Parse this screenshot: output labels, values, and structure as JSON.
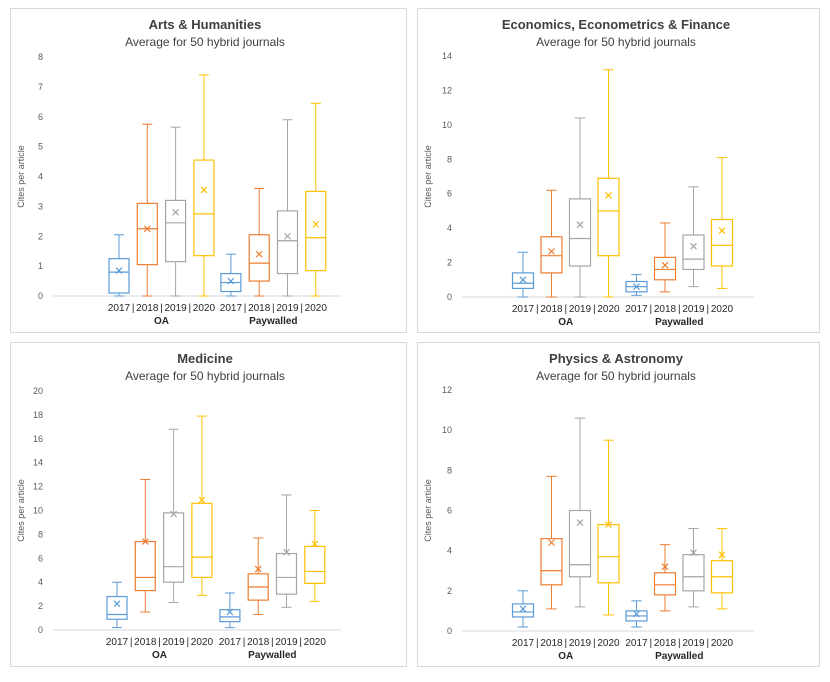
{
  "colors": {
    "2017": "#5b9bd5",
    "2018": "#ed7d31",
    "2019": "#a5a5a5",
    "2020": "#ffc000",
    "axis_text": "#595959",
    "grid": "#d9d9d9"
  },
  "chart_data": [
    {
      "type": "box",
      "title": "Arts & Humanities",
      "subtitle": "Average for 50 hybrid journals",
      "ylabel": "Cites per article",
      "ylim": [
        0,
        8
      ],
      "yticks": [
        "0",
        "1",
        "2",
        "3",
        "4",
        "5",
        "6",
        "7",
        "8"
      ],
      "year_labels": [
        "2017",
        "2018",
        "2019",
        "2020"
      ],
      "group_labels": [
        "OA",
        "Paywalled"
      ],
      "groups": [
        {
          "name": "OA",
          "boxes": [
            {
              "year": "2017",
              "min": 0,
              "q1": 0.1,
              "median": 0.8,
              "q3": 1.25,
              "max": 2.05,
              "mean": 0.85
            },
            {
              "year": "2018",
              "min": 0,
              "q1": 1.05,
              "median": 2.25,
              "q3": 3.1,
              "max": 5.75,
              "mean": 2.25
            },
            {
              "year": "2019",
              "min": 0,
              "q1": 1.15,
              "median": 2.45,
              "q3": 3.2,
              "max": 5.65,
              "mean": 2.8
            },
            {
              "year": "2020",
              "min": 0,
              "q1": 1.35,
              "median": 2.75,
              "q3": 4.55,
              "max": 7.4,
              "mean": 3.55
            }
          ]
        },
        {
          "name": "Paywalled",
          "boxes": [
            {
              "year": "2017",
              "min": 0,
              "q1": 0.15,
              "median": 0.45,
              "q3": 0.75,
              "max": 1.4,
              "mean": 0.5
            },
            {
              "year": "2018",
              "min": 0,
              "q1": 0.5,
              "median": 1.1,
              "q3": 2.05,
              "max": 3.6,
              "mean": 1.4
            },
            {
              "year": "2019",
              "min": 0,
              "q1": 0.75,
              "median": 1.85,
              "q3": 2.85,
              "max": 5.9,
              "mean": 2.0
            },
            {
              "year": "2020",
              "min": 0,
              "q1": 0.85,
              "median": 1.95,
              "q3": 3.5,
              "max": 6.45,
              "mean": 2.4
            }
          ]
        }
      ]
    },
    {
      "type": "box",
      "title": "Economics, Econometrics & Finance",
      "subtitle": "Average for 50 hybrid journals",
      "ylabel": "Cites per article",
      "ylim": [
        0,
        14
      ],
      "yticks": [
        "0",
        "2",
        "4",
        "6",
        "8",
        "10",
        "12",
        "14"
      ],
      "year_labels": [
        "2017",
        "2018",
        "2019",
        "2020"
      ],
      "group_labels": [
        "OA",
        "Paywalled"
      ],
      "groups": [
        {
          "name": "OA",
          "boxes": [
            {
              "year": "2017",
              "min": 0,
              "q1": 0.5,
              "median": 0.8,
              "q3": 1.4,
              "max": 2.6,
              "mean": 1.0
            },
            {
              "year": "2018",
              "min": 0,
              "q1": 1.4,
              "median": 2.4,
              "q3": 3.5,
              "max": 6.2,
              "mean": 2.65
            },
            {
              "year": "2019",
              "min": 0,
              "q1": 1.8,
              "median": 3.4,
              "q3": 5.7,
              "max": 10.4,
              "mean": 4.2
            },
            {
              "year": "2020",
              "min": 0,
              "q1": 2.4,
              "median": 5.0,
              "q3": 6.9,
              "max": 13.2,
              "mean": 5.9
            }
          ]
        },
        {
          "name": "Paywalled",
          "boxes": [
            {
              "year": "2017",
              "min": 0.1,
              "q1": 0.3,
              "median": 0.6,
              "q3": 0.9,
              "max": 1.3,
              "mean": 0.6
            },
            {
              "year": "2018",
              "min": 0.3,
              "q1": 1.0,
              "median": 1.6,
              "q3": 2.3,
              "max": 4.3,
              "mean": 1.85
            },
            {
              "year": "2019",
              "min": 0.6,
              "q1": 1.6,
              "median": 2.2,
              "q3": 3.6,
              "max": 6.4,
              "mean": 2.95
            },
            {
              "year": "2020",
              "min": 0.5,
              "q1": 1.8,
              "median": 3.0,
              "q3": 4.5,
              "max": 8.1,
              "mean": 3.85
            }
          ]
        }
      ]
    },
    {
      "type": "box",
      "title": "Medicine",
      "subtitle": "Average for 50 hybrid journals",
      "ylabel": "Cites per article",
      "ylim": [
        0,
        20
      ],
      "yticks": [
        "0",
        "2",
        "4",
        "6",
        "8",
        "10",
        "12",
        "14",
        "16",
        "18",
        "20"
      ],
      "year_labels": [
        "2017",
        "2018",
        "2019",
        "2020"
      ],
      "group_labels": [
        "OA",
        "Paywalled"
      ],
      "groups": [
        {
          "name": "OA",
          "boxes": [
            {
              "year": "2017",
              "min": 0.2,
              "q1": 0.9,
              "median": 1.3,
              "q3": 2.8,
              "max": 4.0,
              "mean": 2.2
            },
            {
              "year": "2018",
              "min": 1.5,
              "q1": 3.3,
              "median": 4.4,
              "q3": 7.4,
              "max": 12.6,
              "mean": 7.4
            },
            {
              "year": "2019",
              "min": 2.3,
              "q1": 4.0,
              "median": 5.3,
              "q3": 9.8,
              "max": 16.8,
              "mean": 9.7
            },
            {
              "year": "2020",
              "min": 2.9,
              "q1": 4.4,
              "median": 6.1,
              "q3": 10.6,
              "max": 17.9,
              "mean": 10.9
            }
          ]
        },
        {
          "name": "Paywalled",
          "boxes": [
            {
              "year": "2017",
              "min": 0.2,
              "q1": 0.7,
              "median": 1.1,
              "q3": 1.7,
              "max": 3.1,
              "mean": 1.5
            },
            {
              "year": "2018",
              "min": 1.3,
              "q1": 2.5,
              "median": 3.6,
              "q3": 4.7,
              "max": 7.7,
              "mean": 5.1
            },
            {
              "year": "2019",
              "min": 1.9,
              "q1": 3.0,
              "median": 4.4,
              "q3": 6.4,
              "max": 11.3,
              "mean": 6.5
            },
            {
              "year": "2020",
              "min": 2.4,
              "q1": 3.9,
              "median": 4.9,
              "q3": 7.0,
              "max": 10.0,
              "mean": 7.2
            }
          ]
        }
      ]
    },
    {
      "type": "box",
      "title": "Physics & Astronomy",
      "subtitle": "Average for 50 hybrid journals",
      "ylabel": "Cites per article",
      "ylim": [
        0,
        12
      ],
      "yticks": [
        "0",
        "2",
        "4",
        "6",
        "8",
        "10",
        "12"
      ],
      "year_labels": [
        "2017",
        "2018",
        "2019",
        "2020"
      ],
      "group_labels": [
        "OA",
        "Paywalled"
      ],
      "groups": [
        {
          "name": "OA",
          "boxes": [
            {
              "year": "2017",
              "min": 0.2,
              "q1": 0.7,
              "median": 0.95,
              "q3": 1.35,
              "max": 2.0,
              "mean": 1.1
            },
            {
              "year": "2018",
              "min": 1.1,
              "q1": 2.3,
              "median": 3.0,
              "q3": 4.6,
              "max": 7.7,
              "mean": 4.4
            },
            {
              "year": "2019",
              "min": 1.2,
              "q1": 2.7,
              "median": 3.3,
              "q3": 6.0,
              "max": 10.6,
              "mean": 5.4
            },
            {
              "year": "2020",
              "min": 0.8,
              "q1": 2.4,
              "median": 3.7,
              "q3": 5.3,
              "max": 9.5,
              "mean": 5.3
            }
          ]
        },
        {
          "name": "Paywalled",
          "boxes": [
            {
              "year": "2017",
              "min": 0.2,
              "q1": 0.5,
              "median": 0.75,
              "q3": 1.0,
              "max": 1.5,
              "mean": 0.85
            },
            {
              "year": "2018",
              "min": 1.0,
              "q1": 1.8,
              "median": 2.3,
              "q3": 2.9,
              "max": 4.3,
              "mean": 3.2
            },
            {
              "year": "2019",
              "min": 1.2,
              "q1": 2.0,
              "median": 2.7,
              "q3": 3.8,
              "max": 5.1,
              "mean": 3.9
            },
            {
              "year": "2020",
              "min": 1.1,
              "q1": 1.9,
              "median": 2.7,
              "q3": 3.5,
              "max": 5.1,
              "mean": 3.8
            }
          ]
        }
      ]
    }
  ]
}
